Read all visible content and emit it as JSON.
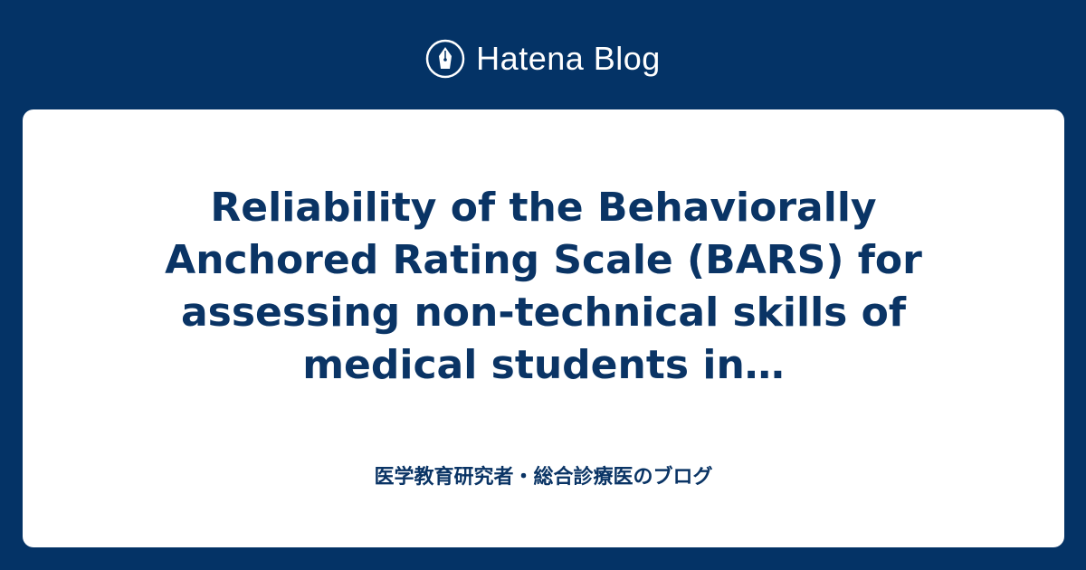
{
  "brand": {
    "name": "Hatena Blog",
    "icon": "fountain-pen-icon",
    "bg_color": "#043366"
  },
  "entry": {
    "title": "Reliability of the Behaviorally Anchored Rating Scale (BARS) for assessing non-technical skills of medical students in…"
  },
  "blog": {
    "name": "医学教育研究者・総合診療医のブログ"
  }
}
